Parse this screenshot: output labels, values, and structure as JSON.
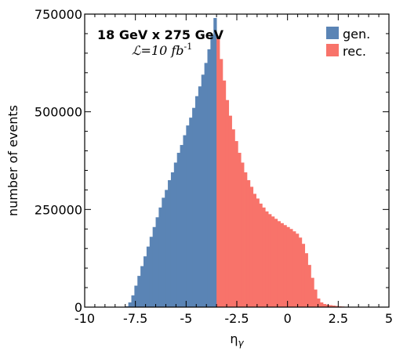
{
  "chart_data": {
    "type": "bar",
    "title": "",
    "xlabel": "η",
    "xlabel_sub": "γ",
    "ylabel": "number of events",
    "xlim": [
      -10,
      5
    ],
    "ylim": [
      0,
      750000
    ],
    "x_ticks": [
      -10,
      -7.5,
      -5,
      -2.5,
      0,
      2.5,
      5
    ],
    "x_tick_labels": [
      "-10",
      "-7.5",
      "-5",
      "-2.5",
      "0",
      "2.5",
      "5"
    ],
    "y_ticks": [
      0,
      250000,
      500000,
      750000
    ],
    "y_tick_labels": [
      "0",
      "250000",
      "500000",
      "750000"
    ],
    "annotations": {
      "energy": "18  GeV  x  275  GeV",
      "lumi_prefix": "ℒ=10 fb",
      "lumi_exp": "-1"
    },
    "legend_position": "top-right",
    "bin_width": 0.15,
    "series": [
      {
        "name": "gen.",
        "color": "#5a84b5",
        "bins": [
          [
            -8.0,
            2000
          ],
          [
            -7.85,
            12000
          ],
          [
            -7.7,
            30000
          ],
          [
            -7.55,
            55000
          ],
          [
            -7.4,
            80000
          ],
          [
            -7.25,
            105000
          ],
          [
            -7.1,
            130000
          ],
          [
            -6.95,
            155000
          ],
          [
            -6.8,
            180000
          ],
          [
            -6.65,
            205000
          ],
          [
            -6.5,
            230000
          ],
          [
            -6.35,
            255000
          ],
          [
            -6.2,
            280000
          ],
          [
            -6.05,
            300000
          ],
          [
            -5.9,
            325000
          ],
          [
            -5.75,
            345000
          ],
          [
            -5.6,
            370000
          ],
          [
            -5.45,
            395000
          ],
          [
            -5.3,
            415000
          ],
          [
            -5.15,
            440000
          ],
          [
            -5.0,
            465000
          ],
          [
            -4.85,
            485000
          ],
          [
            -4.7,
            510000
          ],
          [
            -4.55,
            540000
          ],
          [
            -4.4,
            565000
          ],
          [
            -4.25,
            595000
          ],
          [
            -4.1,
            625000
          ],
          [
            -3.95,
            660000
          ],
          [
            -3.8,
            695000
          ],
          [
            -3.65,
            740000
          ]
        ]
      },
      {
        "name": "rec.",
        "color": "#f8736a",
        "bins": [
          [
            -3.5,
            690000
          ],
          [
            -3.35,
            635000
          ],
          [
            -3.2,
            580000
          ],
          [
            -3.05,
            530000
          ],
          [
            -2.9,
            490000
          ],
          [
            -2.75,
            455000
          ],
          [
            -2.6,
            425000
          ],
          [
            -2.45,
            395000
          ],
          [
            -2.3,
            370000
          ],
          [
            -2.15,
            345000
          ],
          [
            -2.0,
            325000
          ],
          [
            -1.85,
            308000
          ],
          [
            -1.7,
            290000
          ],
          [
            -1.55,
            278000
          ],
          [
            -1.4,
            265000
          ],
          [
            -1.25,
            255000
          ],
          [
            -1.1,
            245000
          ],
          [
            -0.95,
            238000
          ],
          [
            -0.8,
            232000
          ],
          [
            -0.65,
            226000
          ],
          [
            -0.5,
            220000
          ],
          [
            -0.35,
            215000
          ],
          [
            -0.2,
            210000
          ],
          [
            -0.05,
            205000
          ],
          [
            0.1,
            200000
          ],
          [
            0.25,
            194000
          ],
          [
            0.4,
            188000
          ],
          [
            0.55,
            178000
          ],
          [
            0.7,
            162000
          ],
          [
            0.85,
            138000
          ],
          [
            1.0,
            108000
          ],
          [
            1.15,
            75000
          ],
          [
            1.3,
            45000
          ],
          [
            1.45,
            22000
          ],
          [
            1.6,
            12000
          ],
          [
            1.75,
            8000
          ],
          [
            1.9,
            6000
          ],
          [
            2.05,
            5000
          ],
          [
            2.2,
            4000
          ],
          [
            2.35,
            3000
          ],
          [
            2.5,
            2000
          ],
          [
            2.65,
            1500
          ],
          [
            2.8,
            1000
          ]
        ]
      }
    ]
  }
}
